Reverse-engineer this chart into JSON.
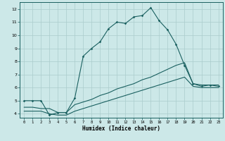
{
  "title": "",
  "xlabel": "Humidex (Indice chaleur)",
  "ylabel": "",
  "xlim": [
    -0.5,
    23.5
  ],
  "ylim": [
    3.7,
    12.5
  ],
  "xticks": [
    0,
    1,
    2,
    3,
    4,
    5,
    6,
    7,
    8,
    9,
    10,
    11,
    12,
    13,
    14,
    15,
    16,
    17,
    18,
    19,
    20,
    21,
    22,
    23
  ],
  "yticks": [
    4,
    5,
    6,
    7,
    8,
    9,
    10,
    11,
    12
  ],
  "bg_color": "#cce8e8",
  "grid_color": "#aacccc",
  "line_color": "#1a6060",
  "line1_x": [
    0,
    1,
    2,
    3,
    4,
    5,
    6,
    7,
    8,
    9,
    10,
    11,
    12,
    13,
    14,
    15,
    16,
    17,
    18,
    19,
    20,
    21,
    22,
    23
  ],
  "line1_y": [
    5.0,
    5.0,
    5.0,
    3.9,
    4.1,
    4.1,
    5.2,
    8.4,
    9.0,
    9.5,
    10.5,
    11.0,
    10.9,
    11.4,
    11.5,
    12.1,
    11.1,
    10.4,
    9.3,
    7.7,
    6.3,
    6.1,
    6.2,
    6.1
  ],
  "line2_x": [
    0,
    1,
    2,
    3,
    4,
    5,
    6,
    7,
    8,
    9,
    10,
    11,
    12,
    13,
    14,
    15,
    16,
    17,
    18,
    19,
    20,
    21,
    22,
    23
  ],
  "line2_y": [
    4.5,
    4.5,
    4.4,
    4.4,
    4.1,
    4.1,
    4.7,
    4.9,
    5.1,
    5.4,
    5.6,
    5.9,
    6.1,
    6.3,
    6.6,
    6.8,
    7.1,
    7.4,
    7.7,
    7.9,
    6.3,
    6.2,
    6.2,
    6.2
  ],
  "line3_x": [
    0,
    1,
    2,
    3,
    4,
    5,
    6,
    7,
    8,
    9,
    10,
    11,
    12,
    13,
    14,
    15,
    16,
    17,
    18,
    19,
    20,
    21,
    22,
    23
  ],
  "line3_y": [
    4.2,
    4.2,
    4.2,
    4.0,
    3.9,
    3.9,
    4.2,
    4.4,
    4.6,
    4.8,
    5.0,
    5.2,
    5.4,
    5.6,
    5.8,
    6.0,
    6.2,
    6.4,
    6.6,
    6.8,
    6.1,
    6.0,
    6.0,
    6.0
  ]
}
